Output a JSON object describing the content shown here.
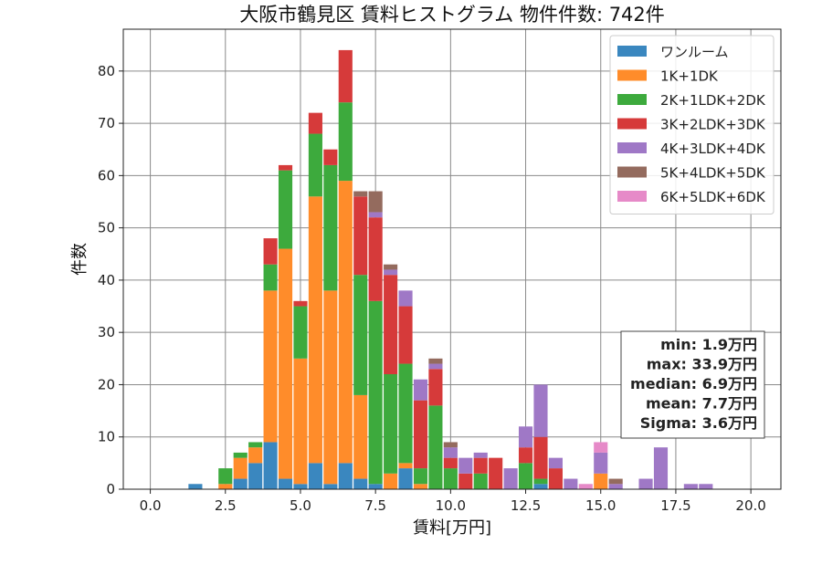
{
  "chart_data": {
    "type": "bar",
    "stacked": true,
    "title": "大阪市鶴見区 賃料ヒストグラム 物件件数: 742件",
    "xlabel": "賃料[万円]",
    "ylabel": "件数",
    "xlim": [
      -0.9,
      21.0
    ],
    "ylim": [
      0,
      88
    ],
    "xticks": [
      0.0,
      2.5,
      5.0,
      7.5,
      10.0,
      12.5,
      15.0,
      17.5,
      20.0
    ],
    "xtick_labels": [
      "0.0",
      "2.5",
      "5.0",
      "7.5",
      "10.0",
      "12.5",
      "15.0",
      "17.5",
      "20.0"
    ],
    "yticks": [
      0,
      10,
      20,
      30,
      40,
      50,
      60,
      70,
      80
    ],
    "ytick_labels": [
      "0",
      "10",
      "20",
      "30",
      "40",
      "50",
      "60",
      "70",
      "80"
    ],
    "grid": true,
    "legend_position": "top-right",
    "bin_width": 0.5,
    "bar_width": 0.46,
    "x": [
      1.5,
      2.5,
      3.0,
      3.5,
      4.0,
      4.5,
      5.0,
      5.5,
      6.0,
      6.5,
      7.0,
      7.5,
      8.0,
      8.5,
      9.0,
      9.5,
      10.0,
      10.5,
      11.0,
      11.5,
      12.0,
      12.5,
      13.0,
      13.5,
      14.0,
      14.5,
      15.0,
      15.5,
      16.0,
      16.5,
      17.0,
      17.5,
      18.0,
      18.5
    ],
    "series": [
      {
        "name": "ワンルーム",
        "color": "#3a87bf",
        "values": [
          1,
          0,
          2,
          5,
          9,
          2,
          1,
          5,
          1,
          5,
          2,
          1,
          0,
          4,
          0,
          0,
          0,
          0,
          0,
          0,
          0,
          0,
          1,
          0,
          0,
          0,
          0,
          0,
          0,
          0,
          0,
          0,
          0,
          0
        ]
      },
      {
        "name": "1K+1DK",
        "color": "#ff8c2a",
        "values": [
          0,
          1,
          4,
          3,
          29,
          44,
          24,
          51,
          37,
          54,
          16,
          0,
          3,
          1,
          1,
          0,
          0,
          0,
          0,
          0,
          0,
          0,
          0,
          0,
          0,
          0,
          3,
          0,
          0,
          0,
          0,
          0,
          0,
          0
        ]
      },
      {
        "name": "2K+1LDK+2DK",
        "color": "#3daa3d",
        "values": [
          0,
          3,
          1,
          1,
          5,
          15,
          10,
          12,
          24,
          15,
          23,
          35,
          19,
          19,
          3,
          16,
          4,
          0,
          3,
          0,
          0,
          5,
          1,
          0,
          0,
          0,
          0,
          0,
          0,
          0,
          0,
          0,
          0,
          0
        ]
      },
      {
        "name": "3K+2LDK+3DK",
        "color": "#d63a3a",
        "values": [
          0,
          0,
          0,
          0,
          5,
          1,
          1,
          4,
          3,
          10,
          15,
          16,
          19,
          11,
          13,
          7,
          2,
          3,
          3,
          6,
          0,
          3,
          8,
          4,
          0,
          0,
          0,
          0,
          0,
          0,
          0,
          0,
          0,
          0
        ]
      },
      {
        "name": "4K+3LDK+4DK",
        "color": "#9f78c6",
        "values": [
          0,
          0,
          0,
          0,
          0,
          0,
          0,
          0,
          0,
          0,
          0,
          1,
          1,
          3,
          4,
          1,
          2,
          3,
          1,
          0,
          4,
          4,
          10,
          2,
          2,
          0,
          4,
          1,
          0,
          2,
          8,
          0,
          1,
          1
        ]
      },
      {
        "name": "5K+4LDK+5DK",
        "color": "#946b5e",
        "values": [
          0,
          0,
          0,
          0,
          0,
          0,
          0,
          0,
          0,
          0,
          1,
          4,
          1,
          0,
          0,
          1,
          1,
          0,
          0,
          0,
          0,
          0,
          0,
          0,
          0,
          0,
          0,
          1,
          0,
          0,
          0,
          0,
          0,
          0
        ]
      },
      {
        "name": "6K+5LDK+6DK",
        "color": "#e68ac8",
        "values": [
          0,
          0,
          0,
          0,
          0,
          0,
          0,
          0,
          0,
          0,
          0,
          0,
          0,
          0,
          0,
          0,
          0,
          0,
          0,
          0,
          0,
          0,
          0,
          0,
          0,
          1,
          2,
          0,
          0,
          0,
          0,
          0,
          0,
          0
        ]
      }
    ],
    "stats": [
      "min: 1.9万円",
      "max: 33.9万円",
      "median: 6.9万円",
      "mean: 7.7万円",
      "Sigma: 3.6万円"
    ]
  }
}
